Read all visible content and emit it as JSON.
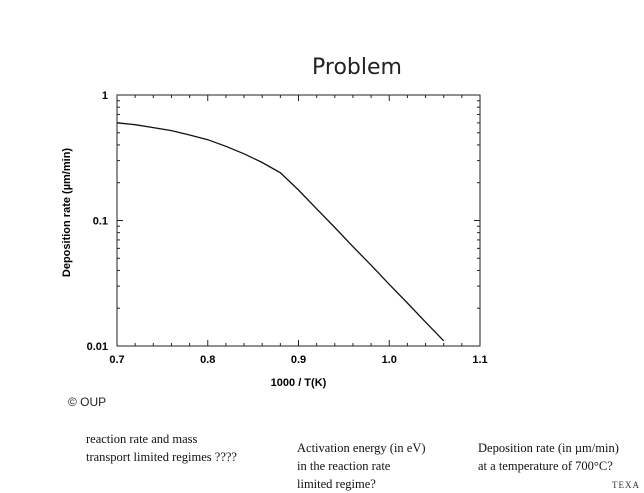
{
  "slide": {
    "title": "Problem",
    "credit": "© OUP",
    "questions": [
      {
        "lines": [
          "reaction rate and mass",
          "transport limited regimes ????"
        ]
      },
      {
        "lines": [
          "Activation energy (in eV)",
          "in the reaction rate",
          "limited regime?"
        ]
      },
      {
        "lines": [
          "Deposition rate (in µm/min)",
          "at a temperature of 700°C?"
        ]
      }
    ],
    "footer_fragment": "TEXA"
  },
  "chart_data": {
    "type": "line",
    "title": "",
    "xlabel": "1000 / T(K)",
    "ylabel": "Deposition rate (µm/min)",
    "xscale": "linear",
    "yscale": "log",
    "xlim": [
      0.7,
      1.1
    ],
    "ylim": [
      0.01,
      1
    ],
    "xticks": [
      0.7,
      0.8,
      0.9,
      1.0,
      1.1
    ],
    "xtick_labels": [
      "0.7",
      "0.8",
      "0.9",
      "1.0",
      "1.1"
    ],
    "yticks": [
      0.01,
      0.1,
      1
    ],
    "ytick_labels": [
      "0.01",
      "0.1",
      "1"
    ],
    "grid": false,
    "line_color": "#111111",
    "series": [
      {
        "x": [
          0.7,
          0.72,
          0.74,
          0.76,
          0.78,
          0.8,
          0.82,
          0.84,
          0.86,
          0.88,
          0.9,
          0.92,
          0.94,
          0.96,
          0.98,
          1.0,
          1.02,
          1.04,
          1.06
        ],
        "y": [
          0.6,
          0.58,
          0.55,
          0.52,
          0.48,
          0.44,
          0.39,
          0.34,
          0.29,
          0.24,
          0.175,
          0.124,
          0.088,
          0.062,
          0.044,
          0.031,
          0.022,
          0.0155,
          0.011
        ]
      }
    ]
  }
}
